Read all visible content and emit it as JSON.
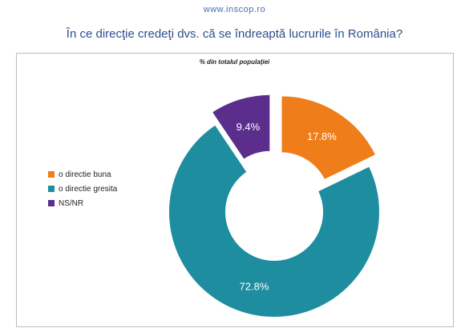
{
  "header": {
    "site_url": "www.inscop.ro",
    "title": "În ce direcţie credeţi dvs. că se îndreaptă lucrurile în România?"
  },
  "chart_data": {
    "type": "pie",
    "title": "În ce direcţie credeţi dvs. că se îndreaptă lucrurile în România?",
    "subtitle": "% din totalul populaţiei",
    "donut": true,
    "exploded": true,
    "legend_position": "left",
    "series": [
      {
        "name": "o directie buna",
        "value": 17.8,
        "label": "17.8%",
        "color": "#ef7d1a"
      },
      {
        "name": "o directie gresita",
        "value": 72.8,
        "label": "72.8%",
        "color": "#1e8da0"
      },
      {
        "name": "NS/NR",
        "value": 9.4,
        "label": "9.4%",
        "color": "#5b2d8c"
      }
    ]
  }
}
